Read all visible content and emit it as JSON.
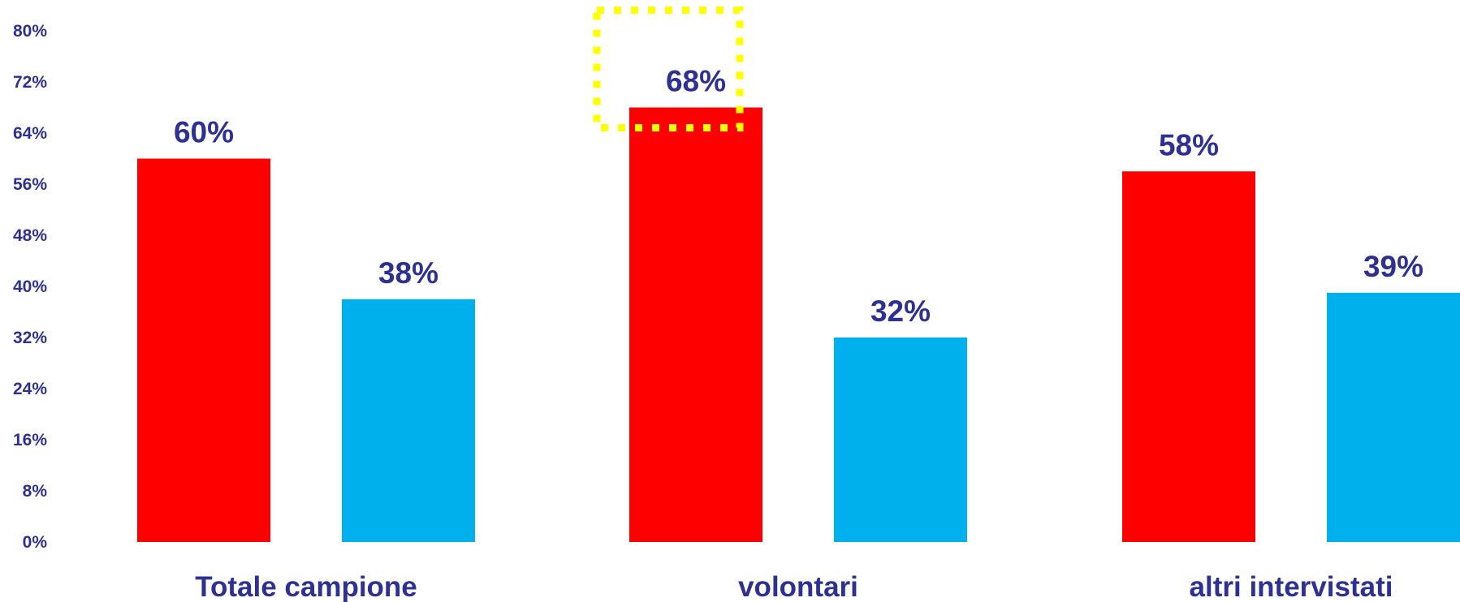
{
  "chart_data": {
    "type": "bar",
    "categories": [
      "Totale campione",
      "volontari",
      "altri intervistati"
    ],
    "series": [
      {
        "values": [
          60,
          68,
          58
        ],
        "color": "#ff0000"
      },
      {
        "values": [
          38,
          32,
          39
        ],
        "color": "#00b0ec"
      }
    ],
    "value_labels": [
      [
        "60%",
        "68%",
        "58%"
      ],
      [
        "38%",
        "32%",
        "39%"
      ]
    ],
    "ylim": [
      0,
      80
    ],
    "yticks": [
      "0%",
      "8%",
      "16%",
      "24%",
      "32%",
      "40%",
      "48%",
      "56%",
      "64%",
      "72%",
      "80%"
    ],
    "grid": false,
    "legend": "none",
    "label_color": "#2e3192",
    "highlight": {
      "series": 0,
      "category": 1,
      "color": "#ffff00",
      "style": "dotted-box"
    }
  }
}
